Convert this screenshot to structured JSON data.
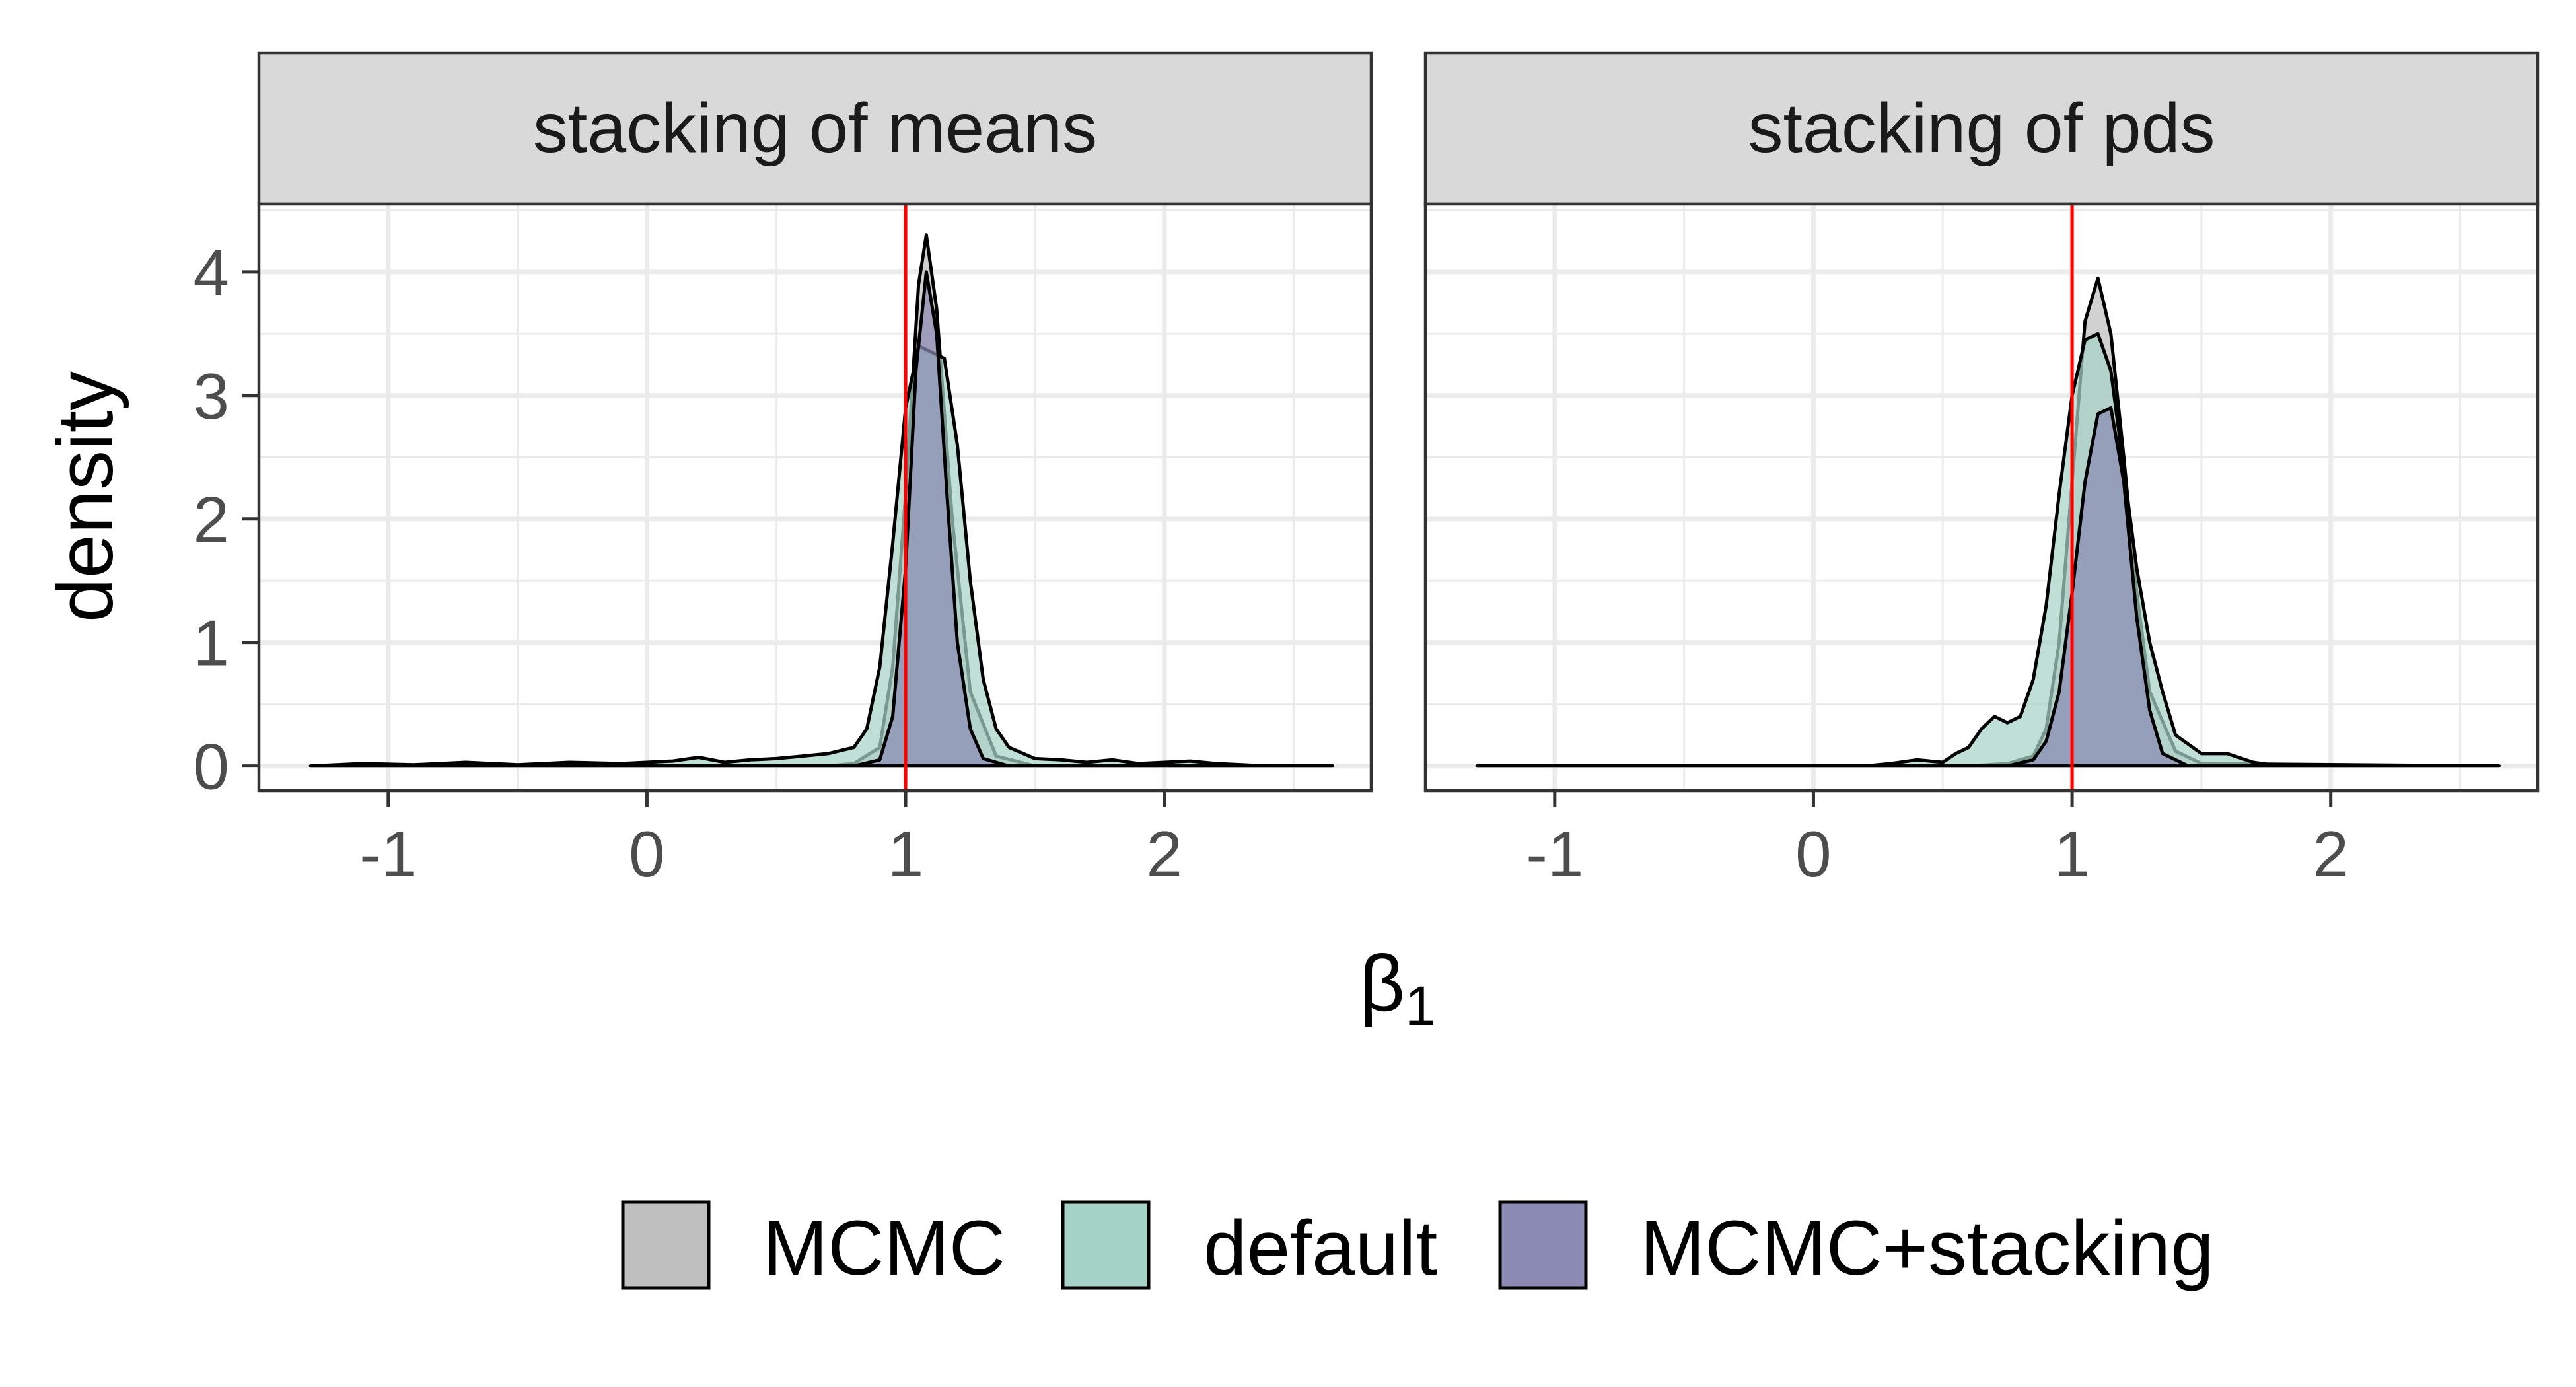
{
  "chart_data": {
    "type": "area",
    "kind": "density",
    "ylabel": "density",
    "xlabel": "β",
    "xlabel_subscript": "1",
    "xlim": [
      -1.5,
      2.8
    ],
    "ylim": [
      -0.2,
      4.55
    ],
    "x_ticks": [
      -1,
      0,
      1,
      2
    ],
    "x_tick_labels": [
      "-1",
      "0",
      "1",
      "2"
    ],
    "y_ticks": [
      0,
      1,
      2,
      3,
      4
    ],
    "y_tick_labels": [
      "0",
      "1",
      "2",
      "3",
      "4"
    ],
    "reference_line": {
      "x": 1,
      "color": "#ff0000"
    },
    "series_styles": [
      {
        "name": "MCMC",
        "fill": "#bfbfbf"
      },
      {
        "name": "default",
        "fill": "#a6d3c8"
      },
      {
        "name": "MCMC+stacking",
        "fill": "#8a8ab4"
      }
    ],
    "panels": [
      {
        "title": "stacking of means",
        "series": [
          {
            "name": "MCMC",
            "x": [
              -1.3,
              0.7,
              0.8,
              0.9,
              0.95,
              1.0,
              1.05,
              1.08,
              1.12,
              1.18,
              1.25,
              1.35,
              1.5,
              2.65
            ],
            "y": [
              0,
              0,
              0.02,
              0.15,
              0.8,
              2.2,
              3.9,
              4.3,
              3.7,
              2.0,
              0.6,
              0.08,
              0,
              0
            ]
          },
          {
            "name": "default",
            "x": [
              -1.3,
              -1.1,
              -0.9,
              -0.7,
              -0.5,
              -0.3,
              -0.1,
              0.1,
              0.2,
              0.3,
              0.4,
              0.5,
              0.6,
              0.7,
              0.8,
              0.85,
              0.9,
              0.95,
              1.0,
              1.05,
              1.1,
              1.15,
              1.2,
              1.25,
              1.3,
              1.35,
              1.4,
              1.5,
              1.6,
              1.7,
              1.8,
              1.9,
              2.0,
              2.1,
              2.2,
              2.3,
              2.4,
              2.65
            ],
            "y": [
              0,
              0.02,
              0.01,
              0.03,
              0.01,
              0.03,
              0.02,
              0.04,
              0.07,
              0.03,
              0.05,
              0.06,
              0.08,
              0.1,
              0.15,
              0.3,
              0.8,
              1.8,
              2.9,
              3.4,
              3.35,
              3.3,
              2.6,
              1.5,
              0.7,
              0.3,
              0.15,
              0.06,
              0.05,
              0.03,
              0.05,
              0.02,
              0.03,
              0.04,
              0.02,
              0.01,
              0,
              0
            ]
          },
          {
            "name": "MCMC+stacking",
            "x": [
              -1.3,
              0.8,
              0.9,
              0.95,
              1.0,
              1.04,
              1.08,
              1.12,
              1.16,
              1.2,
              1.25,
              1.3,
              1.4,
              2.65
            ],
            "y": [
              0,
              0,
              0.05,
              0.4,
              1.6,
              3.2,
              4.0,
              3.5,
              2.2,
              1.0,
              0.3,
              0.06,
              0,
              0
            ]
          }
        ]
      },
      {
        "title": "stacking of pds",
        "series": [
          {
            "name": "MCMC",
            "x": [
              -1.3,
              0.6,
              0.75,
              0.85,
              0.9,
              0.95,
              1.0,
              1.05,
              1.1,
              1.15,
              1.2,
              1.25,
              1.3,
              1.4,
              1.5,
              2.65
            ],
            "y": [
              0,
              0,
              0.02,
              0.08,
              0.3,
              1.0,
              2.3,
              3.6,
              3.95,
              3.5,
              2.5,
              1.4,
              0.6,
              0.12,
              0.02,
              0
            ]
          },
          {
            "name": "default",
            "x": [
              -1.3,
              0.2,
              0.3,
              0.4,
              0.5,
              0.55,
              0.6,
              0.65,
              0.7,
              0.75,
              0.8,
              0.85,
              0.9,
              0.95,
              1.0,
              1.05,
              1.1,
              1.15,
              1.2,
              1.25,
              1.3,
              1.35,
              1.4,
              1.5,
              1.6,
              1.7,
              1.8,
              2.65
            ],
            "y": [
              0,
              0,
              0.02,
              0.05,
              0.03,
              0.1,
              0.15,
              0.3,
              0.4,
              0.35,
              0.4,
              0.7,
              1.3,
              2.2,
              3.0,
              3.45,
              3.5,
              3.2,
              2.4,
              1.6,
              1.0,
              0.6,
              0.25,
              0.1,
              0.1,
              0.03,
              0,
              0
            ]
          },
          {
            "name": "MCMC+stacking",
            "x": [
              -1.3,
              0.75,
              0.85,
              0.9,
              0.95,
              1.0,
              1.05,
              1.1,
              1.15,
              1.2,
              1.25,
              1.3,
              1.35,
              1.45,
              2.65
            ],
            "y": [
              0,
              0,
              0.05,
              0.2,
              0.6,
              1.4,
              2.3,
              2.85,
              2.9,
              2.3,
              1.2,
              0.45,
              0.1,
              0,
              0
            ]
          }
        ]
      }
    ],
    "legend": {
      "position": "bottom",
      "items": [
        "MCMC",
        "default",
        "MCMC+stacking"
      ]
    }
  }
}
